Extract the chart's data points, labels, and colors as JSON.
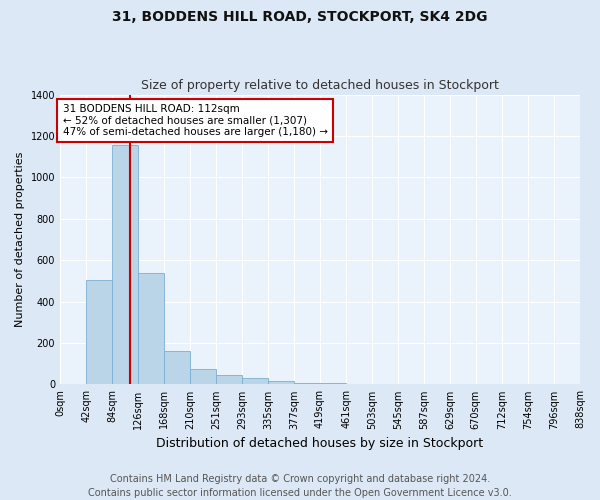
{
  "title": "31, BODDENS HILL ROAD, STOCKPORT, SK4 2DG",
  "subtitle": "Size of property relative to detached houses in Stockport",
  "xlabel": "Distribution of detached houses by size in Stockport",
  "ylabel": "Number of detached properties",
  "footer_line1": "Contains HM Land Registry data © Crown copyright and database right 2024.",
  "footer_line2": "Contains public sector information licensed under the Open Government Licence v3.0.",
  "bar_edges": [
    0,
    42,
    84,
    126,
    168,
    210,
    251,
    293,
    335,
    377,
    419,
    461,
    503,
    545,
    587,
    629,
    670,
    712,
    754,
    796,
    838
  ],
  "bar_heights": [
    2,
    505,
    1155,
    540,
    160,
    75,
    45,
    30,
    15,
    8,
    5,
    2,
    1,
    1,
    1,
    0,
    0,
    0,
    0,
    0
  ],
  "bar_color": "#bad4e8",
  "bar_edge_color": "#7bafd4",
  "property_value": 112,
  "vline_color": "#cc0000",
  "annotation_line1": "31 BODDENS HILL ROAD: 112sqm",
  "annotation_line2": "← 52% of detached houses are smaller (1,307)",
  "annotation_line3": "47% of semi-detached houses are larger (1,180) →",
  "annotation_box_color": "#ffffff",
  "annotation_box_edgecolor": "#cc0000",
  "ylim": [
    0,
    1400
  ],
  "yticks": [
    0,
    200,
    400,
    600,
    800,
    1000,
    1200,
    1400
  ],
  "background_color": "#dce8f5",
  "plot_background_color": "#eaf2fb",
  "grid_color": "#ffffff",
  "title_fontsize": 10,
  "subtitle_fontsize": 9,
  "xlabel_fontsize": 9,
  "ylabel_fontsize": 8,
  "tick_fontsize": 7,
  "annotation_fontsize": 7.5,
  "footer_fontsize": 7
}
